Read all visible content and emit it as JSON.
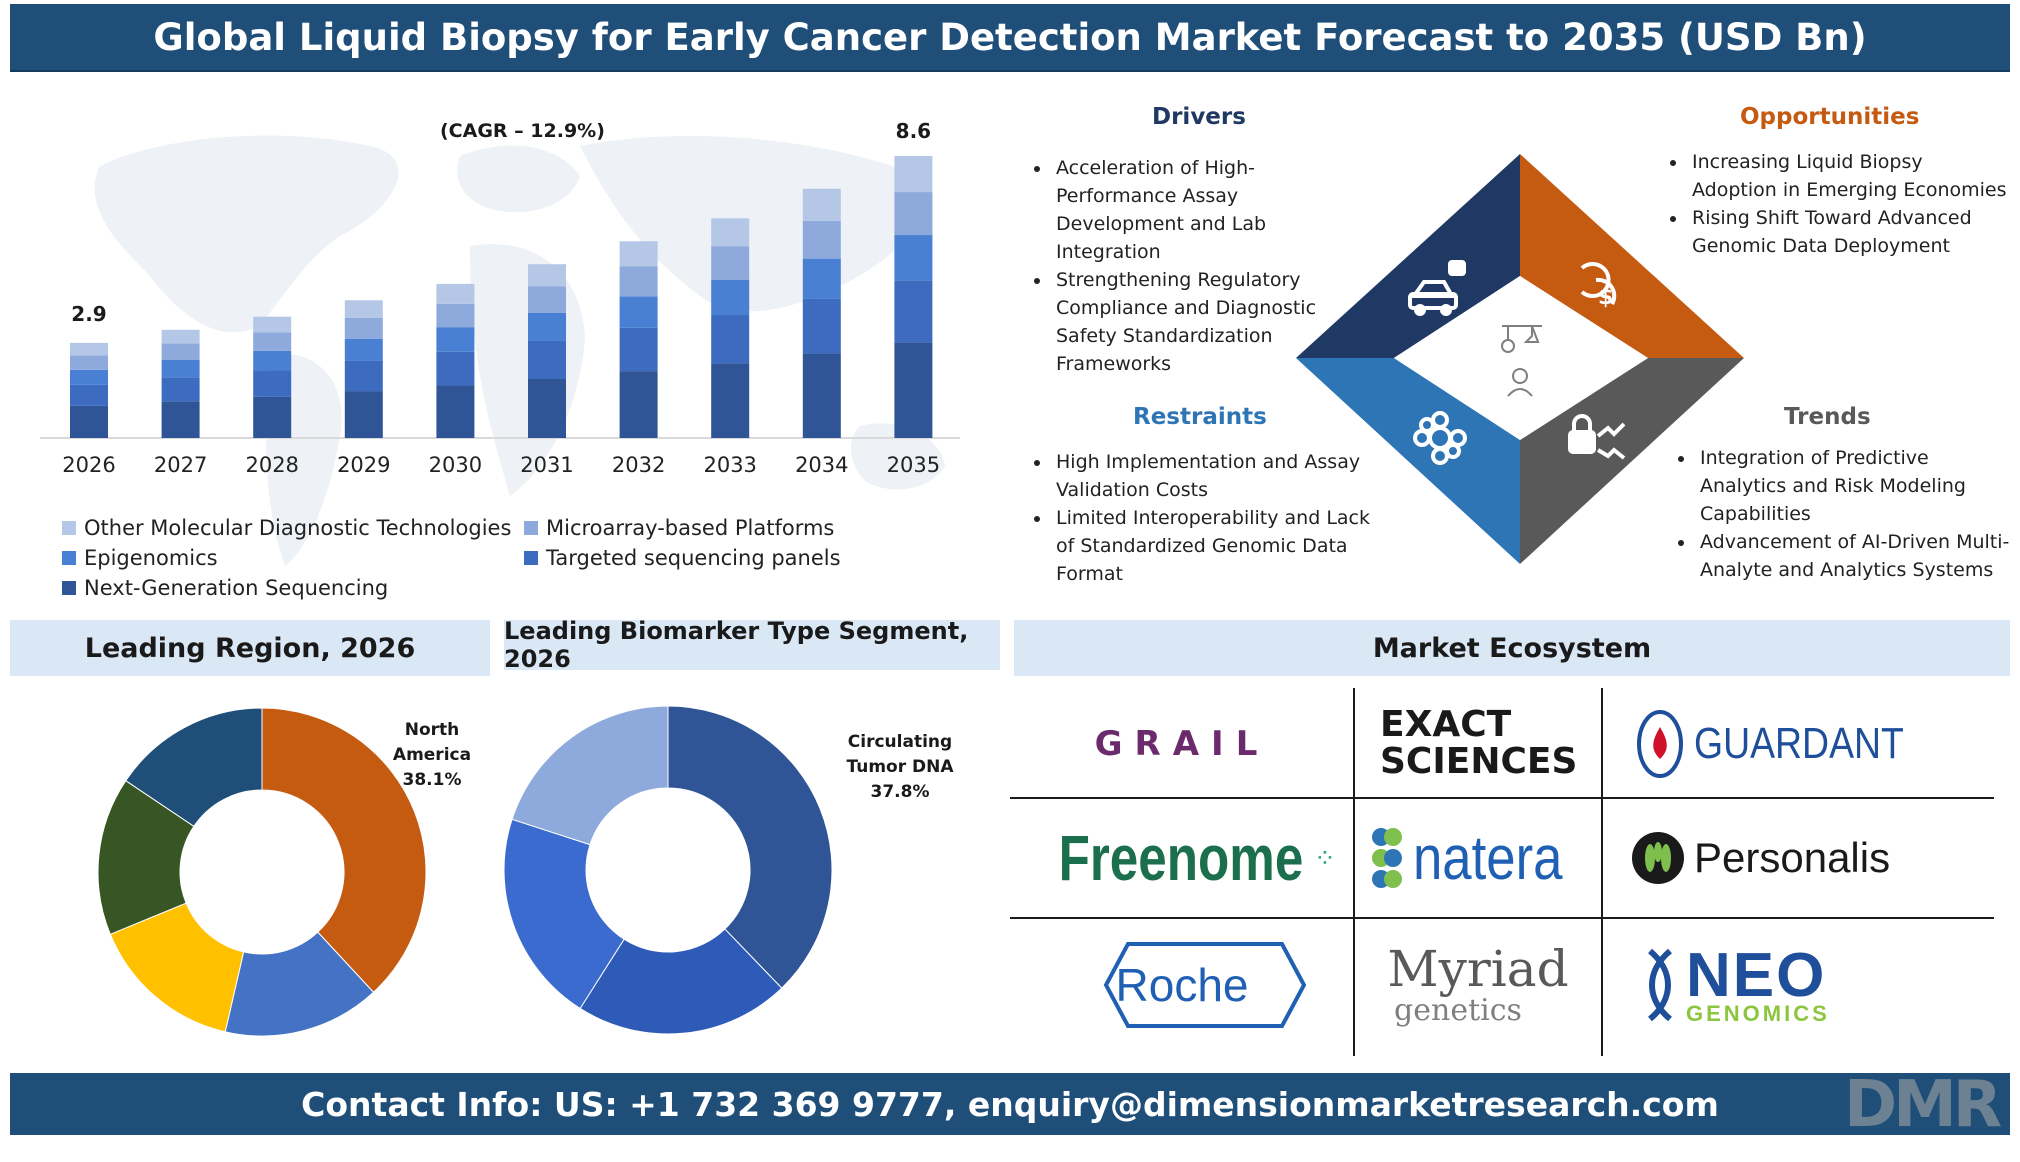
{
  "title": "Global Liquid Biopsy for Early Cancer Detection Market Forecast to 2035 (USD Bn)",
  "footer": "Contact Info: US: +1 732 369 9777, enquiry@dimensionmarketresearch.com",
  "colors": {
    "header_bg": "#1f4e79",
    "section_bg": "#dae7f5",
    "seg1": "#2f5597",
    "seg2": "#3c6bbf",
    "seg3": "#4a80d4",
    "seg4": "#8ea9db",
    "seg5": "#b4c7e7",
    "drivers": "#1f3864",
    "opportunities": "#c55a11",
    "restraints": "#2e75b6",
    "trends": "#595959"
  },
  "chart_data": [
    {
      "type": "bar",
      "stacked": true,
      "cagr_label": "(CAGR – 12.9%)",
      "categories": [
        "2026",
        "2027",
        "2028",
        "2029",
        "2030",
        "2031",
        "2032",
        "2033",
        "2034",
        "2035"
      ],
      "totals": [
        2.9,
        3.3,
        3.7,
        4.2,
        4.7,
        5.3,
        6.0,
        6.7,
        7.6,
        8.6
      ],
      "first_label": "2.9",
      "last_label": "8.6",
      "series": [
        {
          "name": "Next-Generation Sequencing",
          "values": [
            0.98,
            1.12,
            1.26,
            1.43,
            1.6,
            1.8,
            2.04,
            2.28,
            2.58,
            2.92
          ]
        },
        {
          "name": "Epigenomics",
          "values": [
            0.64,
            0.73,
            0.81,
            0.92,
            1.03,
            1.17,
            1.32,
            1.47,
            1.67,
            1.89
          ]
        },
        {
          "name": "Targeted sequencing panels",
          "values": [
            0.46,
            0.53,
            0.59,
            0.67,
            0.75,
            0.85,
            0.96,
            1.07,
            1.22,
            1.38
          ]
        },
        {
          "name": "Microarray-based Platforms",
          "values": [
            0.44,
            0.5,
            0.56,
            0.64,
            0.71,
            0.8,
            0.91,
            1.02,
            1.15,
            1.31
          ]
        },
        {
          "name": "Other Molecular Diagnostic Technologies",
          "values": [
            0.38,
            0.42,
            0.48,
            0.54,
            0.61,
            0.68,
            0.77,
            0.86,
            0.98,
            1.1
          ]
        }
      ],
      "legend": [
        {
          "label": "Other Molecular Diagnostic Technologies",
          "color": "#b4c7e7"
        },
        {
          "label": "Microarray-based Platforms",
          "color": "#8ea9db"
        },
        {
          "label": "Epigenomics",
          "color": "#4a80d4"
        },
        {
          "label": "Targeted sequencing panels",
          "color": "#3c6bbf"
        },
        {
          "label": "Next-Generation Sequencing",
          "color": "#2f5597"
        }
      ]
    },
    {
      "type": "pie",
      "donut": true,
      "title": "Leading Region, 2026",
      "label_lines": [
        "North",
        "America",
        "38.1%"
      ],
      "slices": [
        {
          "value": 38.1,
          "color": "#c55a11"
        },
        {
          "value": 15.5,
          "color": "#4472c4"
        },
        {
          "value": 15.2,
          "color": "#ffc000"
        },
        {
          "value": 15.6,
          "color": "#375623"
        },
        {
          "value": 15.6,
          "color": "#1f4e79"
        }
      ]
    },
    {
      "type": "pie",
      "donut": true,
      "title": "Leading Biomarker Type Segment, 2026",
      "label_lines": [
        "Circulating",
        "Tumor DNA",
        "37.8%"
      ],
      "slices": [
        {
          "value": 37.8,
          "color": "#2f5597"
        },
        {
          "value": 21.2,
          "color": "#2e5ab8"
        },
        {
          "value": 21.0,
          "color": "#3c6bcf"
        },
        {
          "value": 20.0,
          "color": "#8ea9db"
        }
      ]
    }
  ],
  "drivers": {
    "title": "Drivers",
    "items": [
      "Acceleration of High-Performance Assay Development and Lab Integration",
      "Strengthening Regulatory Compliance and Diagnostic Safety Standardization Frameworks"
    ]
  },
  "opportunities": {
    "title": "Opportunities",
    "items": [
      "Increasing Liquid Biopsy Adoption in Emerging Economies",
      "Rising Shift Toward Advanced Genomic Data Deployment"
    ]
  },
  "restraints": {
    "title": "Restraints",
    "items": [
      "High Implementation and Assay Validation Costs",
      "Limited Interoperability and Lack of Standardized Genomic Data Format"
    ]
  },
  "trends": {
    "title": "Trends",
    "items": [
      "Integration of Predictive Analytics and Risk Modeling Capabilities",
      "Advancement of AI-Driven Multi-Analyte and Analytics Systems"
    ]
  },
  "diamond_icons": [
    "robot-car-icon",
    "money-cycle-icon",
    "gear-flower-icon",
    "lock-trend-icon",
    "analyst-icon"
  ],
  "sections": {
    "region": "Leading Region, 2026",
    "biomarker": "Leading Biomarker Type Segment, 2026",
    "ecosystem": "Market Ecosystem"
  },
  "logos": {
    "grail": "GRAIL",
    "exact_line1": "EXACT",
    "exact_line2": "SCIENCES",
    "guardant": "GUARDANT",
    "freenome": "Freenome",
    "natera": "natera",
    "personalis": "Personalis",
    "roche": "Roche",
    "myriad_line1": "Myriad",
    "myriad_line2": "genetics",
    "neo_line1": "NEO",
    "neo_line2": "GENOMICS",
    "dmr": "DMR"
  }
}
